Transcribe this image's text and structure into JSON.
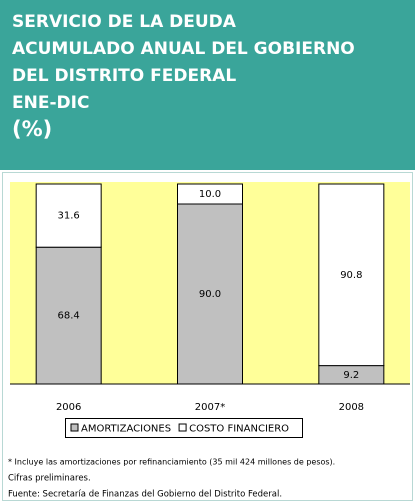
{
  "chart_data": {
    "type": "stacked_bar",
    "title": [
      "SERVICIO DE LA DEUDA",
      "ACUMULADO ANUAL DEL GOBIERNO",
      "DEL DISTRITO FEDERAL",
      "ENE-DIC",
      "(%)"
    ],
    "categories": [
      "2006",
      "2007*",
      "2008"
    ],
    "series": [
      {
        "name": "AMORTIZACIONES",
        "color": "#c0c0c0",
        "values": [
          68.4,
          90,
          9.2
        ],
        "value_labels": [
          "68.4",
          "90.0",
          "9.2"
        ]
      },
      {
        "name": "COSTO FINANCIERO",
        "color": "#ffffff",
        "values": [
          31.6,
          10,
          90.8
        ],
        "value_labels": [
          "31.6",
          "10.0",
          "90.8"
        ]
      }
    ],
    "ylim": [
      0,
      100
    ],
    "plot_background": "#ffff99",
    "notes": [
      "* Incluye las amortizaciones por refinanciamiento (35 mil 424 millones de pesos).",
      "Cifras preliminares.",
      "Fuente: Secretaría de Finanzas del Gobierno del Distrito Federal."
    ]
  }
}
